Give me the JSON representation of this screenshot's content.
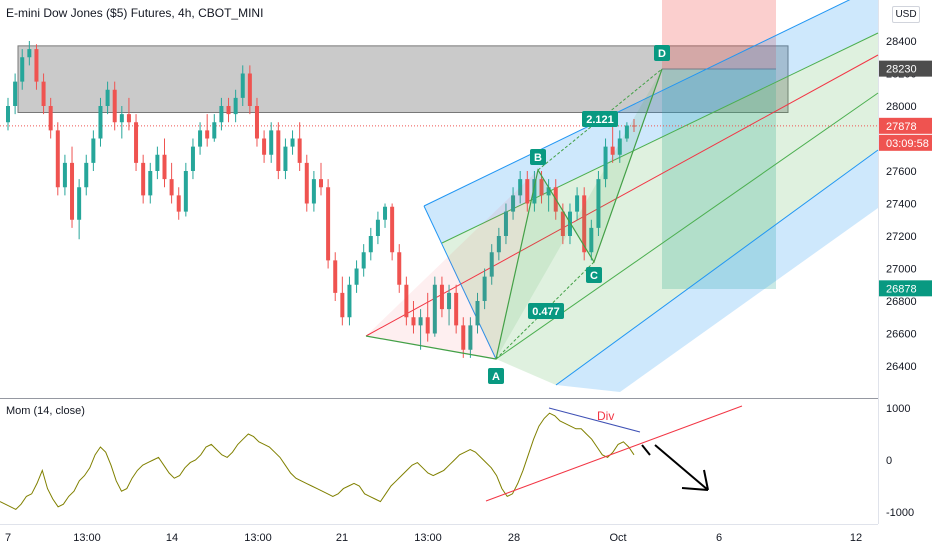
{
  "header": {
    "title": "E-mini Dow Jones ($5) Futures, 4h, CBOT_MINI",
    "currency": "USD"
  },
  "indicator": {
    "label": "Mom (14, close)"
  },
  "chart_data": [
    {
      "type": "candlestick",
      "symbol": "E-mini Dow Jones ($5) Futures",
      "interval": "4h",
      "exchange": "CBOT_MINI",
      "y_ticks": [
        26400,
        26600,
        26800,
        27000,
        27200,
        27400,
        27600,
        27800,
        28000,
        28200,
        28400
      ],
      "ylim": [
        26200,
        28700
      ],
      "x_ticks": [
        "7",
        "13:00",
        "14",
        "13:00",
        "21",
        "13:00",
        "28",
        "Oct",
        "6",
        "12"
      ],
      "price_labels": [
        {
          "text": "28230",
          "value": 28230,
          "color": "#4d4d4d"
        },
        {
          "text": "27878",
          "value": 27878,
          "color": "#ef5350"
        },
        {
          "text": "03:09:58",
          "value": 27800,
          "color": "#ef5350"
        },
        {
          "text": "26878",
          "value": 26878,
          "color": "#089981"
        }
      ],
      "grey_zone": [
        27960,
        28370
      ],
      "pattern_labels": [
        {
          "text": "A",
          "value": 26430
        },
        {
          "text": "B",
          "value": 27560
        },
        {
          "text": "C",
          "value": 27050
        },
        {
          "text": "D",
          "value": 28210
        }
      ],
      "ratios": [
        "0.477",
        "2.121"
      ],
      "candles": [
        [
          27900,
          28050,
          27850,
          28000
        ],
        [
          28000,
          28200,
          27950,
          28150
        ],
        [
          28150,
          28350,
          28100,
          28300
        ],
        [
          28300,
          28400,
          28250,
          28350
        ],
        [
          28350,
          28380,
          28100,
          28150
        ],
        [
          28150,
          28200,
          27950,
          28000
        ],
        [
          28000,
          28050,
          27800,
          27850
        ],
        [
          27850,
          27900,
          27450,
          27500
        ],
        [
          27500,
          27700,
          27450,
          27650
        ],
        [
          27650,
          27750,
          27250,
          27300
        ],
        [
          27300,
          27550,
          27180,
          27500
        ],
        [
          27500,
          27700,
          27450,
          27650
        ],
        [
          27650,
          27850,
          27600,
          27800
        ],
        [
          27800,
          28050,
          27750,
          28000
        ],
        [
          28000,
          28150,
          27950,
          28100
        ],
        [
          28100,
          28150,
          27850,
          27900
        ],
        [
          27900,
          28000,
          27800,
          27950
        ],
        [
          27950,
          28050,
          27850,
          27900
        ],
        [
          27900,
          27950,
          27600,
          27650
        ],
        [
          27650,
          27700,
          27400,
          27450
        ],
        [
          27450,
          27650,
          27400,
          27600
        ],
        [
          27600,
          27750,
          27550,
          27700
        ],
        [
          27700,
          27800,
          27500,
          27550
        ],
        [
          27550,
          27650,
          27400,
          27450
        ],
        [
          27450,
          27500,
          27300,
          27350
        ],
        [
          27350,
          27650,
          27320,
          27600
        ],
        [
          27600,
          27800,
          27550,
          27750
        ],
        [
          27750,
          27900,
          27700,
          27850
        ],
        [
          27850,
          27950,
          27750,
          27800
        ],
        [
          27800,
          27950,
          27780,
          27900
        ],
        [
          27900,
          28050,
          27850,
          28000
        ],
        [
          28000,
          28050,
          27900,
          27950
        ],
        [
          27950,
          28100,
          27900,
          28050
        ],
        [
          28050,
          28250,
          28000,
          28200
        ],
        [
          28200,
          28250,
          27950,
          28000
        ],
        [
          28000,
          28050,
          27750,
          27800
        ],
        [
          27800,
          27850,
          27650,
          27700
        ],
        [
          27700,
          27900,
          27650,
          27850
        ],
        [
          27850,
          27900,
          27550,
          27600
        ],
        [
          27600,
          27800,
          27550,
          27750
        ],
        [
          27750,
          27850,
          27700,
          27800
        ],
        [
          27800,
          27900,
          27600,
          27650
        ],
        [
          27650,
          27700,
          27350,
          27400
        ],
        [
          27400,
          27600,
          27350,
          27550
        ],
        [
          27550,
          27650,
          27450,
          27500
        ],
        [
          27500,
          27550,
          27000,
          27050
        ],
        [
          27050,
          27100,
          26800,
          26850
        ],
        [
          26850,
          26950,
          26650,
          26700
        ],
        [
          26700,
          26950,
          26650,
          26900
        ],
        [
          26900,
          27050,
          26850,
          27000
        ],
        [
          27000,
          27150,
          26950,
          27100
        ],
        [
          27100,
          27250,
          27050,
          27200
        ],
        [
          27200,
          27350,
          27150,
          27300
        ],
        [
          27300,
          27400,
          27250,
          27380
        ],
        [
          27380,
          27400,
          27050,
          27100
        ],
        [
          27100,
          27150,
          26850,
          26900
        ],
        [
          26900,
          26950,
          26650,
          26700
        ],
        [
          26700,
          26800,
          26600,
          26650
        ],
        [
          26650,
          26750,
          26500,
          26700
        ],
        [
          26700,
          26850,
          26550,
          26600
        ],
        [
          26600,
          26950,
          26580,
          26900
        ],
        [
          26900,
          26950,
          26700,
          26750
        ],
        [
          26750,
          26900,
          26650,
          26850
        ],
        [
          26850,
          26900,
          26600,
          26650
        ],
        [
          26650,
          26700,
          26450,
          26500
        ],
        [
          26500,
          26700,
          26450,
          26650
        ],
        [
          26650,
          26850,
          26600,
          26800
        ],
        [
          26800,
          27000,
          26750,
          26950
        ],
        [
          26950,
          27150,
          26900,
          27100
        ],
        [
          27100,
          27250,
          27050,
          27200
        ],
        [
          27200,
          27400,
          27150,
          27350
        ],
        [
          27350,
          27500,
          27300,
          27450
        ],
        [
          27450,
          27600,
          27400,
          27550
        ],
        [
          27550,
          27600,
          27350,
          27400
        ],
        [
          27400,
          27600,
          27350,
          27550
        ],
        [
          27550,
          27600,
          27400,
          27450
        ],
        [
          27450,
          27550,
          27350,
          27500
        ],
        [
          27500,
          27550,
          27300,
          27350
        ],
        [
          27350,
          27400,
          27150,
          27200
        ],
        [
          27200,
          27400,
          27150,
          27350
        ],
        [
          27350,
          27500,
          27300,
          27450
        ],
        [
          27450,
          27500,
          27050,
          27100
        ],
        [
          27100,
          27300,
          27050,
          27250
        ],
        [
          27250,
          27600,
          27200,
          27550
        ],
        [
          27550,
          27800,
          27500,
          27750
        ],
        [
          27750,
          27900,
          27650,
          27700
        ],
        [
          27700,
          27850,
          27650,
          27800
        ],
        [
          27800,
          27900,
          27780,
          27880
        ],
        [
          27880,
          27920,
          27840,
          27878
        ]
      ]
    },
    {
      "type": "line",
      "name": "Mom (14, close)",
      "y_ticks": [
        1000,
        0,
        -1000
      ],
      "ylim": [
        -1100,
        1100
      ],
      "annotation": "Div",
      "values": [
        -800,
        -850,
        -900,
        -950,
        -850,
        -700,
        -650,
        -450,
        -200,
        -550,
        -750,
        -900,
        -850,
        -700,
        -600,
        -400,
        -300,
        -150,
        100,
        250,
        150,
        -100,
        -400,
        -600,
        -550,
        -350,
        -200,
        -100,
        -50,
        0,
        50,
        -100,
        -250,
        -350,
        -300,
        -150,
        -50,
        0,
        100,
        250,
        300,
        200,
        100,
        50,
        150,
        300,
        400,
        500,
        450,
        350,
        300,
        250,
        150,
        50,
        -100,
        -250,
        -350,
        -400,
        -450,
        -500,
        -550,
        -600,
        -650,
        -700,
        -650,
        -550,
        -500,
        -450,
        -500,
        -650,
        -700,
        -750,
        -800,
        -650,
        -500,
        -400,
        -300,
        -200,
        -100,
        -50,
        -150,
        -250,
        -300,
        -250,
        -200,
        -100,
        0,
        100,
        150,
        200,
        150,
        50,
        -50,
        -150,
        -300,
        -550,
        -700,
        -650,
        -450,
        -200,
        100,
        400,
        650,
        800,
        900,
        850,
        750,
        700,
        650,
        600,
        600,
        500,
        400,
        250,
        100,
        50,
        150,
        300,
        350,
        250,
        100
      ]
    }
  ]
}
